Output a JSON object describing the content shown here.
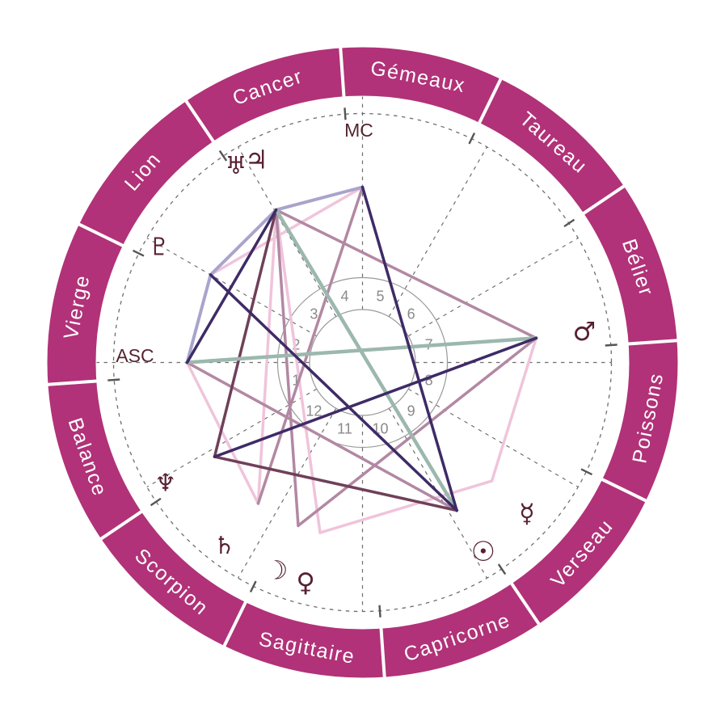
{
  "chart": {
    "type": "natal-wheel",
    "angle_labels": {
      "mc": "MC",
      "asc": "ASC"
    },
    "ring": {
      "color": "#b13278",
      "separator_color": "#ffffff",
      "label_color": "#ffffff"
    },
    "signs": [
      {
        "id": "belier",
        "label": "Bélier",
        "angle": 19
      },
      {
        "id": "taureau",
        "label": "Taureau",
        "angle": 49
      },
      {
        "id": "gemeaux",
        "label": "Gémeaux",
        "angle": 79
      },
      {
        "id": "cancer",
        "label": "Cancer",
        "angle": 109
      },
      {
        "id": "lion",
        "label": "Lion",
        "angle": 139
      },
      {
        "id": "vierge",
        "label": "Vierge",
        "angle": 169
      },
      {
        "id": "balance",
        "label": "Balance",
        "angle": 199
      },
      {
        "id": "scorpion",
        "label": "Scorpion",
        "angle": 229
      },
      {
        "id": "sagittaire",
        "label": "Sagittaire",
        "angle": 259
      },
      {
        "id": "capricorne",
        "label": "Capricorne",
        "angle": 289
      },
      {
        "id": "verseau",
        "label": "Verseau",
        "angle": 319
      },
      {
        "id": "poissons",
        "label": "Poissons",
        "angle": 349
      }
    ],
    "houses": {
      "numbers": [
        1,
        2,
        3,
        4,
        5,
        6,
        7,
        8,
        9,
        10,
        11,
        12
      ],
      "first_house_mid_angle": 195
    },
    "planets": [
      {
        "name": "uranus",
        "glyph": "♅",
        "angle": 122.8,
        "radius": 289,
        "size": 30
      },
      {
        "name": "jupiter",
        "glyph": "♃",
        "angle": 117.6,
        "radius": 283,
        "size": 32
      },
      {
        "name": "pluto",
        "glyph": "♇",
        "angle": 150.5,
        "radius": 289,
        "size": 30
      },
      {
        "name": "neptune",
        "glyph": "♆",
        "angle": 211.5,
        "radius": 286,
        "size": 30
      },
      {
        "name": "saturn",
        "glyph": "♄",
        "angle": 233.0,
        "radius": 284,
        "size": 30
      },
      {
        "name": "moon",
        "glyph": "☽",
        "angle": 247.5,
        "radius": 278,
        "size": 32
      },
      {
        "name": "venus",
        "glyph": "♀",
        "angle": 255.5,
        "radius": 281,
        "size": 32
      },
      {
        "name": "sun",
        "glyph": "☉",
        "angle": 302.5,
        "radius": 278,
        "size": 34
      },
      {
        "name": "mercury",
        "glyph": "☿",
        "angle": 317.5,
        "radius": 276,
        "size": 32
      },
      {
        "name": "mars",
        "glyph": "♂",
        "angle": 8.0,
        "radius": 277,
        "size": 32
      }
    ],
    "points": {
      "mc": 90,
      "asc": 180,
      "jupiter": 119.5,
      "pluto": 150,
      "neptune": 212.5,
      "saturn": 233.5,
      "moon": 248.5,
      "venus": 256,
      "sun": 302.5,
      "mercury": 317.5,
      "mars": 8
    },
    "aspect_styles": {
      "teal": {
        "stroke": "#9cb8ae",
        "width": 4.5
      },
      "indigo": {
        "stroke": "#3e2b66",
        "width": 3.5
      },
      "lavender": {
        "stroke": "#a8a4cc",
        "width": 4
      },
      "maroon": {
        "stroke": "#6f4059",
        "width": 3.5
      },
      "mauve": {
        "stroke": "#b288a3",
        "width": 3.5
      },
      "pink": {
        "stroke": "#f0c4db",
        "width": 3.5
      }
    },
    "aspects": [
      {
        "from": "mc",
        "to": "pluto",
        "color": "pink"
      },
      {
        "from": "jupiter",
        "to": "saturn",
        "color": "pink"
      },
      {
        "from": "jupiter",
        "to": "venus",
        "color": "pink"
      },
      {
        "from": "asc",
        "to": "saturn",
        "color": "pink"
      },
      {
        "from": "venus",
        "to": "mercury",
        "color": "pink"
      },
      {
        "from": "mars",
        "to": "mercury",
        "color": "pink"
      },
      {
        "from": "jupiter",
        "to": "mars",
        "color": "mauve"
      },
      {
        "from": "jupiter",
        "to": "moon",
        "color": "mauve"
      },
      {
        "from": "moon",
        "to": "mars",
        "color": "mauve"
      },
      {
        "from": "mc",
        "to": "saturn",
        "color": "mauve"
      },
      {
        "from": "asc",
        "to": "sun",
        "color": "mauve"
      },
      {
        "from": "jupiter",
        "to": "neptune",
        "color": "maroon"
      },
      {
        "from": "neptune",
        "to": "sun",
        "color": "maroon"
      },
      {
        "from": "mc",
        "to": "jupiter",
        "color": "lavender"
      },
      {
        "from": "jupiter",
        "to": "pluto",
        "color": "lavender"
      },
      {
        "from": "pluto",
        "to": "asc",
        "color": "lavender"
      },
      {
        "from": "asc",
        "to": "mars",
        "color": "teal"
      },
      {
        "from": "jupiter",
        "to": "sun",
        "color": "teal"
      },
      {
        "from": "mc",
        "to": "sun",
        "color": "indigo"
      },
      {
        "from": "pluto",
        "to": "sun",
        "color": "indigo"
      },
      {
        "from": "neptune",
        "to": "mars",
        "color": "indigo"
      },
      {
        "from": "asc",
        "to": "jupiter",
        "color": "indigo"
      }
    ],
    "colors": {
      "glyph": "#571f33",
      "angle_label": "#54252f",
      "house_number": "#8a8a8a",
      "grid": "#6e6e6e",
      "tick": "#555555"
    }
  }
}
